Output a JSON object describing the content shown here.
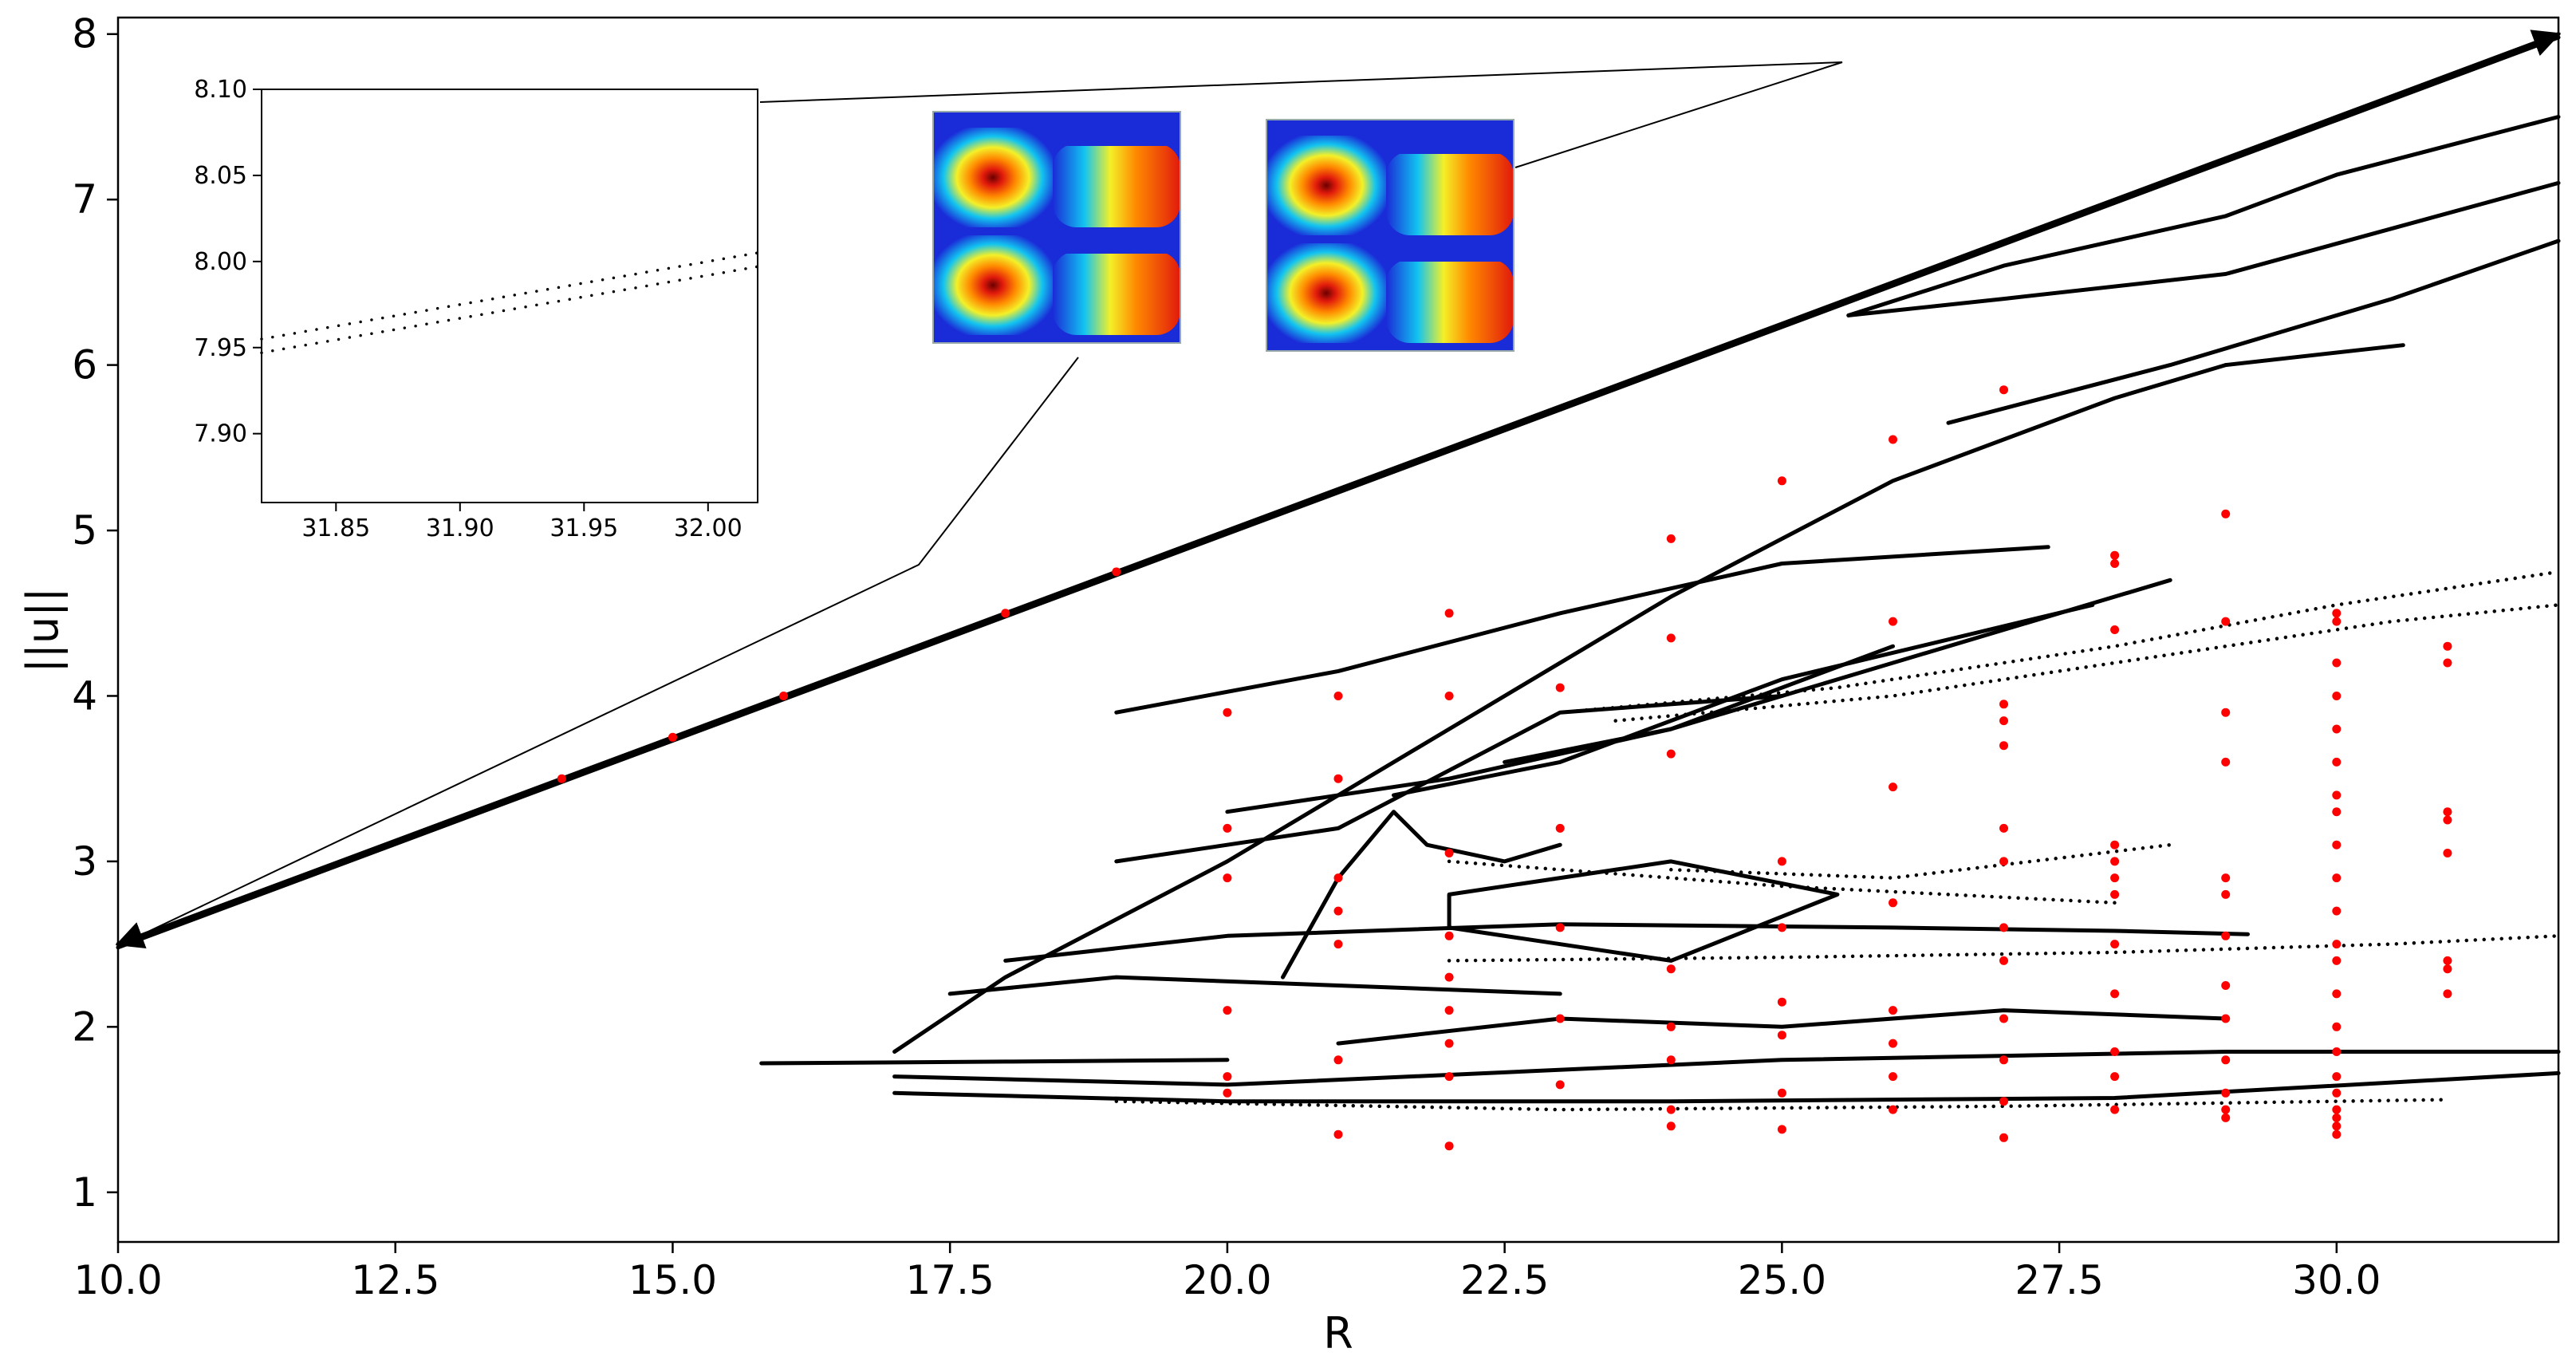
{
  "chart_data": [
    {
      "id": "main",
      "type": "scatter",
      "title": "",
      "xlabel": "R",
      "ylabel": "||u||",
      "xlim": [
        10.0,
        32.0
      ],
      "ylim": [
        0.7,
        8.1
      ],
      "xticks": [
        "10.0",
        "12.5",
        "15.0",
        "17.5",
        "20.0",
        "22.5",
        "25.0",
        "27.5",
        "30.0"
      ],
      "xtick_values": [
        10.0,
        12.5,
        15.0,
        17.5,
        20.0,
        22.5,
        25.0,
        27.5,
        30.0
      ],
      "yticks": [
        "1",
        "2",
        "3",
        "4",
        "5",
        "6",
        "7",
        "8"
      ],
      "ytick_values": [
        1,
        2,
        3,
        4,
        5,
        6,
        7,
        8
      ],
      "grid": false,
      "legend": "none",
      "colors": {
        "branches": "#000000",
        "markers": "#ff0000"
      },
      "branch_color": "#000000",
      "marker_color": "#ff0000",
      "series": [
        {
          "style": "line",
          "points": [
            [
              10.0,
              2.5
            ],
            [
              15.0,
              3.75
            ],
            [
              20.0,
              5.0
            ],
            [
              25.0,
              6.25
            ],
            [
              30.0,
              7.5
            ],
            [
              32.0,
              8.0
            ]
          ]
        },
        {
          "style": "line",
          "points": [
            [
              10.0,
              2.48
            ],
            [
              15.0,
              3.73
            ],
            [
              20.0,
              4.98
            ],
            [
              25.0,
              6.23
            ],
            [
              30.0,
              7.48
            ],
            [
              32.0,
              7.98
            ]
          ]
        },
        {
          "style": "line",
          "points": [
            [
              25.6,
              6.3
            ],
            [
              27.0,
              6.6
            ],
            [
              29.0,
              6.9
            ],
            [
              30.0,
              7.15
            ],
            [
              32.0,
              7.5
            ]
          ]
        },
        {
          "style": "line",
          "points": [
            [
              25.6,
              6.3
            ],
            [
              27.0,
              6.4
            ],
            [
              29.0,
              6.55
            ],
            [
              32.0,
              7.1
            ]
          ]
        },
        {
          "style": "line",
          "points": [
            [
              29.0,
              6.0
            ],
            [
              30.6,
              6.12
            ]
          ]
        },
        {
          "style": "line",
          "points": [
            [
              26.5,
              5.65
            ],
            [
              28.5,
              6.0
            ],
            [
              30.5,
              6.4
            ],
            [
              32.0,
              6.75
            ]
          ]
        },
        {
          "style": "line",
          "points": [
            [
              17.0,
              1.85
            ],
            [
              18.0,
              2.3
            ],
            [
              20.0,
              3.0
            ],
            [
              22.0,
              3.8
            ],
            [
              24.0,
              4.6
            ],
            [
              26.0,
              5.3
            ],
            [
              28.0,
              5.8
            ],
            [
              29.0,
              6.0
            ]
          ]
        },
        {
          "style": "line",
          "points": [
            [
              19.0,
              3.9
            ],
            [
              21.0,
              4.15
            ],
            [
              23.0,
              4.5
            ],
            [
              25.0,
              4.8
            ],
            [
              27.4,
              4.9
            ]
          ]
        },
        {
          "style": "line",
          "points": [
            [
              22.5,
              3.6
            ],
            [
              24.0,
              3.8
            ],
            [
              26.0,
              4.2
            ],
            [
              28.5,
              4.7
            ]
          ]
        },
        {
          "style": "line",
          "points": [
            [
              21.5,
              3.4
            ],
            [
              23.0,
              3.6
            ],
            [
              25.0,
              4.1
            ],
            [
              27.8,
              4.55
            ]
          ]
        },
        {
          "style": "line",
          "points": [
            [
              20.0,
              3.3
            ],
            [
              22.0,
              3.5
            ],
            [
              24.0,
              3.8
            ],
            [
              26.0,
              4.3
            ]
          ]
        },
        {
          "style": "line",
          "points": [
            [
              19.0,
              3.0
            ],
            [
              21.0,
              3.2
            ],
            [
              23.0,
              3.9
            ],
            [
              25.0,
              4.0
            ]
          ]
        },
        {
          "style": "line",
          "points": [
            [
              15.8,
              1.78
            ],
            [
              18.0,
              1.79
            ],
            [
              20.0,
              1.8
            ]
          ]
        },
        {
          "style": "line",
          "points": [
            [
              17.0,
              1.6
            ],
            [
              20.0,
              1.55
            ],
            [
              24.0,
              1.55
            ],
            [
              28.0,
              1.57
            ],
            [
              32.0,
              1.72
            ]
          ]
        },
        {
          "style": "line",
          "points": [
            [
              17.0,
              1.7
            ],
            [
              20.0,
              1.65
            ],
            [
              25.0,
              1.8
            ],
            [
              29.0,
              1.85
            ],
            [
              32.0,
              1.85
            ]
          ]
        },
        {
          "style": "line",
          "points": [
            [
              18.0,
              2.4
            ],
            [
              20.0,
              2.55
            ],
            [
              23.0,
              2.62
            ],
            [
              26.0,
              2.6
            ],
            [
              28.0,
              2.58
            ],
            [
              29.2,
              2.56
            ]
          ]
        },
        {
          "style": "line",
          "points": [
            [
              22.0,
              2.8
            ],
            [
              24.0,
              3.0
            ],
            [
              25.5,
              2.8
            ],
            [
              24.0,
              2.4
            ],
            [
              22.0,
              2.6
            ],
            [
              22.0,
              2.8
            ]
          ]
        },
        {
          "style": "line",
          "points": [
            [
              17.5,
              2.2
            ],
            [
              19.0,
              2.3
            ],
            [
              21.0,
              2.25
            ],
            [
              23.0,
              2.2
            ]
          ]
        },
        {
          "style": "line",
          "points": [
            [
              21.0,
              1.9
            ],
            [
              23.0,
              2.05
            ],
            [
              25.0,
              2.0
            ],
            [
              27.0,
              2.1
            ],
            [
              29.0,
              2.05
            ]
          ]
        },
        {
          "style": "line",
          "points": [
            [
              20.5,
              2.3
            ],
            [
              21.0,
              2.9
            ],
            [
              21.5,
              3.3
            ],
            [
              21.8,
              3.1
            ],
            [
              22.5,
              3.0
            ],
            [
              23.0,
              3.1
            ]
          ]
        },
        {
          "style": "dotted",
          "points": [
            [
              22.0,
              3.0
            ],
            [
              25.0,
              2.85
            ],
            [
              28.0,
              2.75
            ]
          ]
        },
        {
          "style": "dotted",
          "points": [
            [
              24.0,
              2.95
            ],
            [
              26.0,
              2.9
            ],
            [
              28.5,
              3.1
            ]
          ]
        },
        {
          "style": "dotted",
          "points": [
            [
              23.0,
              3.9
            ],
            [
              25.5,
              4.05
            ],
            [
              28.0,
              4.3
            ],
            [
              30.0,
              4.55
            ],
            [
              32.0,
              4.75
            ]
          ]
        },
        {
          "style": "dotted",
          "points": [
            [
              23.5,
              3.85
            ],
            [
              26.0,
              4.0
            ],
            [
              28.5,
              4.25
            ],
            [
              30.5,
              4.45
            ],
            [
              32.0,
              4.55
            ]
          ]
        },
        {
          "style": "dotted",
          "points": [
            [
              22.0,
              2.4
            ],
            [
              25.0,
              2.42
            ],
            [
              28.0,
              2.45
            ],
            [
              30.5,
              2.5
            ],
            [
              32.0,
              2.55
            ]
          ]
        },
        {
          "style": "dotted",
          "points": [
            [
              19.0,
              1.55
            ],
            [
              23.0,
              1.5
            ],
            [
              27.0,
              1.52
            ],
            [
              31.0,
              1.56
            ]
          ]
        }
      ],
      "red_markers": [
        [
          14.0,
          3.5
        ],
        [
          15.0,
          3.75
        ],
        [
          16.0,
          4.0
        ],
        [
          18.0,
          4.5
        ],
        [
          19.0,
          4.75
        ],
        [
          20.0,
          3.9
        ],
        [
          20.0,
          3.2
        ],
        [
          20.0,
          2.9
        ],
        [
          20.0,
          2.1
        ],
        [
          20.0,
          1.7
        ],
        [
          20.0,
          1.6
        ],
        [
          21.0,
          4.0
        ],
        [
          21.0,
          3.5
        ],
        [
          21.0,
          2.9
        ],
        [
          21.0,
          2.7
        ],
        [
          21.0,
          2.5
        ],
        [
          21.0,
          1.8
        ],
        [
          21.0,
          1.35
        ],
        [
          22.0,
          4.5
        ],
        [
          22.0,
          4.0
        ],
        [
          22.0,
          3.05
        ],
        [
          22.0,
          2.55
        ],
        [
          22.0,
          2.3
        ],
        [
          22.0,
          2.1
        ],
        [
          22.0,
          1.9
        ],
        [
          22.0,
          1.7
        ],
        [
          22.0,
          1.28
        ],
        [
          23.0,
          4.05
        ],
        [
          23.0,
          3.2
        ],
        [
          23.0,
          2.6
        ],
        [
          23.0,
          2.05
        ],
        [
          23.0,
          1.65
        ],
        [
          24.0,
          4.95
        ],
        [
          24.0,
          4.35
        ],
        [
          24.0,
          3.65
        ],
        [
          24.0,
          2.35
        ],
        [
          24.0,
          2.0
        ],
        [
          24.0,
          1.8
        ],
        [
          24.0,
          1.5
        ],
        [
          24.0,
          1.4
        ],
        [
          25.0,
          5.3
        ],
        [
          25.0,
          3.0
        ],
        [
          25.0,
          2.6
        ],
        [
          25.0,
          2.15
        ],
        [
          25.0,
          1.95
        ],
        [
          25.0,
          1.6
        ],
        [
          25.0,
          1.38
        ],
        [
          26.0,
          5.55
        ],
        [
          26.0,
          4.45
        ],
        [
          26.0,
          3.45
        ],
        [
          26.0,
          2.75
        ],
        [
          26.0,
          2.1
        ],
        [
          26.0,
          1.9
        ],
        [
          26.0,
          1.7
        ],
        [
          26.0,
          1.5
        ],
        [
          27.0,
          5.85
        ],
        [
          27.0,
          3.95
        ],
        [
          27.0,
          3.85
        ],
        [
          27.0,
          3.7
        ],
        [
          27.0,
          3.2
        ],
        [
          27.0,
          3.0
        ],
        [
          27.0,
          2.6
        ],
        [
          27.0,
          2.4
        ],
        [
          27.0,
          2.05
        ],
        [
          27.0,
          1.8
        ],
        [
          27.0,
          1.55
        ],
        [
          27.0,
          1.33
        ],
        [
          28.0,
          4.85
        ],
        [
          28.0,
          4.8
        ],
        [
          28.0,
          4.4
        ],
        [
          28.0,
          3.1
        ],
        [
          28.0,
          3.0
        ],
        [
          28.0,
          2.9
        ],
        [
          28.0,
          2.8
        ],
        [
          28.0,
          2.5
        ],
        [
          28.0,
          2.2
        ],
        [
          28.0,
          1.85
        ],
        [
          28.0,
          1.7
        ],
        [
          28.0,
          1.5
        ],
        [
          29.0,
          5.1
        ],
        [
          29.0,
          4.45
        ],
        [
          29.0,
          3.9
        ],
        [
          29.0,
          3.6
        ],
        [
          29.0,
          2.9
        ],
        [
          29.0,
          2.8
        ],
        [
          29.0,
          2.55
        ],
        [
          29.0,
          2.25
        ],
        [
          29.0,
          2.05
        ],
        [
          29.0,
          1.8
        ],
        [
          29.0,
          1.6
        ],
        [
          29.0,
          1.5
        ],
        [
          29.0,
          1.45
        ],
        [
          30.0,
          4.5
        ],
        [
          30.0,
          4.45
        ],
        [
          30.0,
          4.2
        ],
        [
          30.0,
          4.0
        ],
        [
          30.0,
          3.8
        ],
        [
          30.0,
          3.6
        ],
        [
          30.0,
          3.4
        ],
        [
          30.0,
          3.3
        ],
        [
          30.0,
          3.1
        ],
        [
          30.0,
          2.9
        ],
        [
          30.0,
          2.7
        ],
        [
          30.0,
          2.5
        ],
        [
          30.0,
          2.4
        ],
        [
          30.0,
          2.2
        ],
        [
          30.0,
          2.0
        ],
        [
          30.0,
          1.85
        ],
        [
          30.0,
          1.7
        ],
        [
          30.0,
          1.6
        ],
        [
          30.0,
          1.5
        ],
        [
          30.0,
          1.45
        ],
        [
          30.0,
          1.4
        ],
        [
          30.0,
          1.35
        ],
        [
          31.0,
          4.3
        ],
        [
          31.0,
          4.2
        ],
        [
          31.0,
          3.3
        ],
        [
          31.0,
          3.25
        ],
        [
          31.0,
          3.05
        ],
        [
          31.0,
          2.4
        ],
        [
          31.0,
          2.35
        ],
        [
          31.0,
          2.2
        ]
      ],
      "arrow_points": [
        [
          10.0,
          2.5
        ],
        [
          32.0,
          8.0
        ]
      ]
    },
    {
      "id": "inset",
      "type": "scatter",
      "title": "",
      "xlabel": "",
      "ylabel": "",
      "xlim": [
        31.82,
        32.02
      ],
      "ylim": [
        7.86,
        8.1
      ],
      "xticks": [
        "31.85",
        "31.90",
        "31.95",
        "32.00"
      ],
      "xtick_values": [
        31.85,
        31.9,
        31.95,
        32.0
      ],
      "yticks": [
        "7.90",
        "7.95",
        "8.00",
        "8.05",
        "8.10"
      ],
      "ytick_values": [
        7.9,
        7.95,
        8.0,
        8.05,
        8.1
      ],
      "grid": false,
      "legend": "none",
      "series": [
        {
          "style": "dotted",
          "points": [
            [
              31.82,
              7.955
            ],
            [
              32.02,
              8.005
            ]
          ]
        },
        {
          "style": "dotted",
          "points": [
            [
              31.82,
              7.947
            ],
            [
              32.02,
              7.997
            ]
          ]
        }
      ]
    }
  ]
}
